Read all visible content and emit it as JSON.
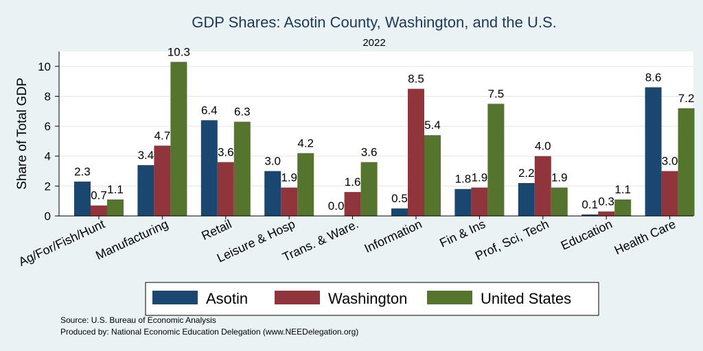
{
  "chart_data": {
    "type": "bar",
    "title": "GDP Shares: Asotin County, Washington, and the U.S.",
    "subtitle": "2022",
    "ylabel": "Share of Total GDP",
    "xlabel": "",
    "ylim": [
      0,
      11
    ],
    "yticks": [
      0,
      2,
      4,
      6,
      8,
      10
    ],
    "grid": true,
    "legend_position": "bottom",
    "categories": [
      "Ag/For/Fish/Hunt",
      "Manufacturing",
      "Retail",
      "Leisure & Hosp",
      "Trans. & Ware.",
      "Information",
      "Fin & Ins",
      "Prof, Sci, Tech",
      "Education",
      "Health Care"
    ],
    "series": [
      {
        "name": "Asotin",
        "color": "#1a476f",
        "values": [
          2.3,
          3.4,
          6.4,
          3.0,
          0.0,
          0.5,
          1.8,
          2.2,
          0.1,
          8.6
        ],
        "labels": [
          "2.3",
          "3.4",
          "6.4",
          "3.0",
          "0.0",
          "0.5",
          "1.8",
          "2.2",
          "0.1",
          "8.6"
        ]
      },
      {
        "name": "Washington",
        "color": "#90353b",
        "values": [
          0.7,
          4.7,
          3.6,
          1.9,
          1.6,
          8.5,
          1.9,
          4.0,
          0.3,
          3.0
        ],
        "labels": [
          "0.7",
          "4.7",
          "3.6",
          "1.9",
          "1.6",
          "8.5",
          "1.9",
          "4.0",
          "0.3",
          "3.0"
        ]
      },
      {
        "name": "United States",
        "color": "#55752f",
        "values": [
          1.1,
          10.3,
          6.3,
          4.2,
          3.6,
          5.4,
          7.5,
          1.9,
          1.1,
          7.2
        ],
        "labels": [
          "1.1",
          "10.3",
          "6.3",
          "4.2",
          "3.6",
          "5.4",
          "7.5",
          "1.9",
          "1.1",
          "7.2"
        ]
      }
    ]
  },
  "notes": {
    "source": "Source: U.S. Bureau of Economic Analysis",
    "produced": "Produced by: National Economic Education Delegation (www.NEEDelegation.org)"
  }
}
